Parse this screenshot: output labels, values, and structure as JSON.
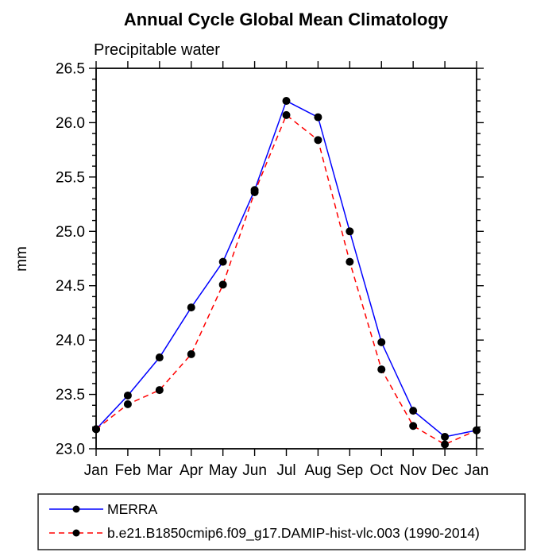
{
  "header": {
    "title": "Annual Cycle Global Mean Climatology",
    "subtitle": "Precipitable water"
  },
  "colors": {
    "background": "#ffffff",
    "axis": "#000000",
    "marker": "#000000",
    "merra_line": "#0000ff",
    "model_line": "#ff0000",
    "legend_border": "#222222"
  },
  "chart_data": {
    "type": "line",
    "title": "Annual Cycle Global Mean Climatology",
    "subtitle": "Precipitable water",
    "xlabel": "",
    "ylabel": "mm",
    "categories": [
      "Jan",
      "Feb",
      "Mar",
      "Apr",
      "May",
      "Jun",
      "Jul",
      "Aug",
      "Sep",
      "Oct",
      "Nov",
      "Dec",
      "Jan"
    ],
    "ylim": [
      23.0,
      26.5
    ],
    "ytick_major_step": 0.5,
    "ytick_minor_step": 0.1,
    "ytick_labels": [
      "23.0",
      "23.5",
      "24.0",
      "24.5",
      "25.0",
      "25.5",
      "26.0",
      "26.5"
    ],
    "grid": false,
    "tick_style": "outward-all-four-sides",
    "legend_position": "bottom-left-box",
    "series": [
      {
        "name": "MERRA",
        "color": "#0000ff",
        "line_style": "solid",
        "marker": "filled-circle",
        "marker_color": "#000000",
        "values": [
          23.18,
          23.49,
          23.84,
          24.3,
          24.72,
          25.38,
          26.2,
          26.05,
          25.0,
          23.98,
          23.35,
          23.11,
          23.17
        ]
      },
      {
        "name": "b.e21.B1850cmip6.f09_g17.DAMIP-hist-vlc.003 (1990-2014)",
        "color": "#ff0000",
        "line_style": "dashed",
        "marker": "filled-circle",
        "marker_color": "#000000",
        "values": [
          23.18,
          23.41,
          23.54,
          23.87,
          24.51,
          25.36,
          26.07,
          25.84,
          24.72,
          23.73,
          23.21,
          23.04,
          23.17
        ]
      }
    ]
  }
}
